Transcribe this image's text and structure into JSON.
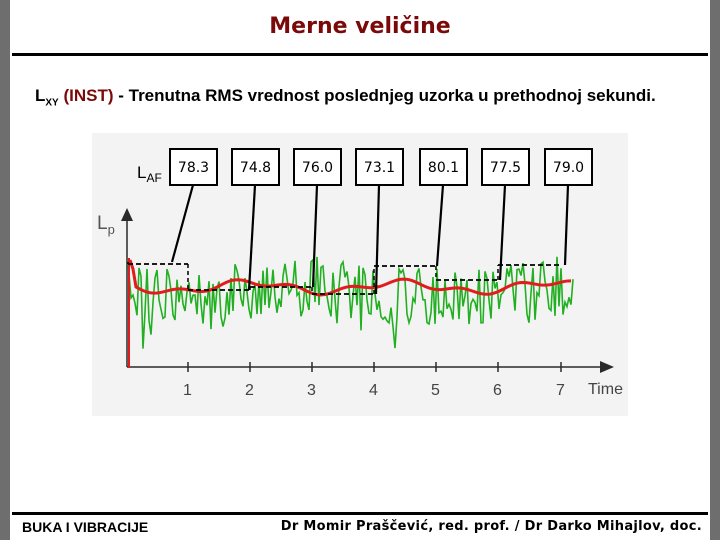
{
  "title": "Merne veličine",
  "subtitle": {
    "symbol_main": "L",
    "symbol_sub": "XY",
    "inst": "(INST)",
    "text": " - Trenutna RMS vrednost poslednjeg uzorka u prethodnoj sekundi."
  },
  "figure": {
    "laf_main": "L",
    "laf_sub": "AF",
    "lp_main": "L",
    "lp_sub": "p",
    "values": [
      "78.3",
      "74.8",
      "76.0",
      "73.1",
      "80.1",
      "77.5",
      "79.0"
    ],
    "ticks": [
      "1",
      "2",
      "3",
      "4",
      "5",
      "6",
      "7"
    ],
    "xlabel": "Time",
    "colors": {
      "noisy": "#22b022",
      "smoothed": "#e01c1c",
      "steps": "#000000"
    }
  },
  "footer": {
    "left": "BUKA I VIBRACIJE",
    "right": "Dr Momir Praščević, red. prof. / Dr Darko Mihajlov, doc."
  }
}
